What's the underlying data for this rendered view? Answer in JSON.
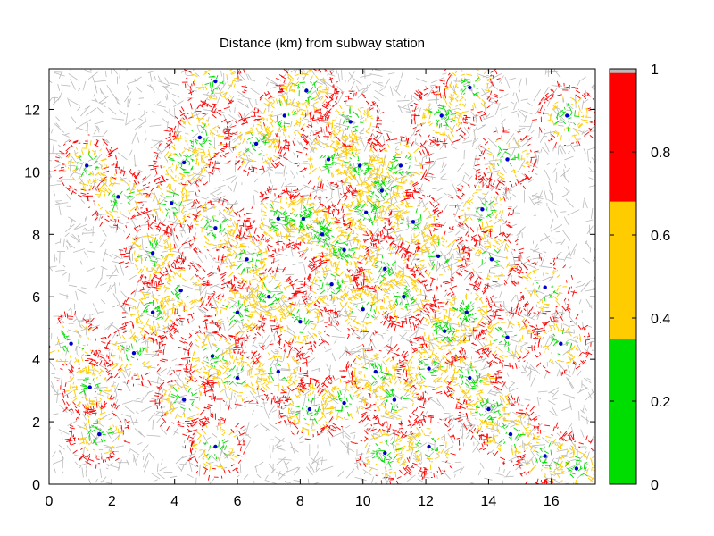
{
  "chart_data": {
    "type": "heatmap",
    "title": "Distance (km) from subway station",
    "xlabel": "",
    "ylabel": "",
    "xlim": [
      0,
      17.4
    ],
    "ylim": [
      0,
      13.3
    ],
    "x_ticks": [
      "0",
      "2",
      "4",
      "6",
      "8",
      "10",
      "12",
      "14",
      "16"
    ],
    "y_ticks": [
      "0",
      "2",
      "4",
      "6",
      "8",
      "10",
      "12"
    ],
    "colorbar": {
      "range": [
        0,
        1
      ],
      "ticks": [
        "0",
        "0.2",
        "0.4",
        "0.6",
        "0.8",
        "1"
      ],
      "bands": [
        {
          "from": 0,
          "to": 0.35,
          "color": "#00dd00"
        },
        {
          "from": 0.35,
          "to": 0.68,
          "color": "#ffcc00"
        },
        {
          "from": 0.68,
          "to": 0.99,
          "color": "#ff0000"
        },
        {
          "from": 0.99,
          "to": 1.0,
          "color": "#bbbbbb"
        }
      ]
    },
    "station_color": "#0000cc",
    "street_color_far": "#bbbbbb",
    "stations_approx": [
      [
        1.2,
        10.2
      ],
      [
        1.6,
        1.6
      ],
      [
        0.7,
        4.5
      ],
      [
        1.3,
        3.1
      ],
      [
        2.7,
        4.2
      ],
      [
        3.3,
        5.5
      ],
      [
        4.3,
        2.7
      ],
      [
        5.3,
        12.9
      ],
      [
        5.3,
        1.2
      ],
      [
        4.3,
        10.3
      ],
      [
        4.8,
        11.1
      ],
      [
        5.3,
        8.2
      ],
      [
        6.3,
        7.2
      ],
      [
        6.6,
        10.9
      ],
      [
        7.5,
        11.8
      ],
      [
        8.2,
        12.6
      ],
      [
        9.6,
        11.6
      ],
      [
        7.3,
        8.5
      ],
      [
        8.1,
        8.5
      ],
      [
        8.7,
        8.0
      ],
      [
        9.4,
        7.5
      ],
      [
        10.1,
        8.7
      ],
      [
        10.6,
        9.4
      ],
      [
        11.2,
        10.2
      ],
      [
        12.5,
        11.8
      ],
      [
        13.4,
        12.7
      ],
      [
        14.6,
        10.4
      ],
      [
        16.5,
        11.8
      ],
      [
        11.6,
        8.4
      ],
      [
        12.4,
        7.3
      ],
      [
        13.8,
        8.8
      ],
      [
        14.1,
        7.2
      ],
      [
        15.8,
        6.3
      ],
      [
        16.3,
        4.5
      ],
      [
        14.6,
        4.7
      ],
      [
        13.3,
        5.5
      ],
      [
        12.6,
        4.9
      ],
      [
        11.3,
        6.0
      ],
      [
        10.0,
        5.6
      ],
      [
        9.0,
        6.4
      ],
      [
        8.0,
        5.2
      ],
      [
        7.0,
        6.0
      ],
      [
        6.0,
        5.5
      ],
      [
        5.2,
        4.1
      ],
      [
        6.0,
        3.4
      ],
      [
        7.3,
        3.6
      ],
      [
        8.3,
        2.4
      ],
      [
        9.4,
        2.6
      ],
      [
        10.4,
        3.6
      ],
      [
        11.0,
        2.7
      ],
      [
        12.1,
        3.7
      ],
      [
        13.4,
        3.4
      ],
      [
        14.0,
        2.4
      ],
      [
        14.7,
        1.6
      ],
      [
        15.8,
        0.9
      ],
      [
        16.8,
        0.5
      ],
      [
        12.1,
        1.2
      ],
      [
        10.7,
        1.0
      ],
      [
        3.3,
        7.4
      ],
      [
        4.2,
        6.2
      ],
      [
        2.2,
        9.2
      ],
      [
        3.9,
        9.0
      ],
      [
        9.9,
        10.2
      ],
      [
        8.9,
        10.4
      ],
      [
        10.7,
        6.9
      ]
    ]
  }
}
